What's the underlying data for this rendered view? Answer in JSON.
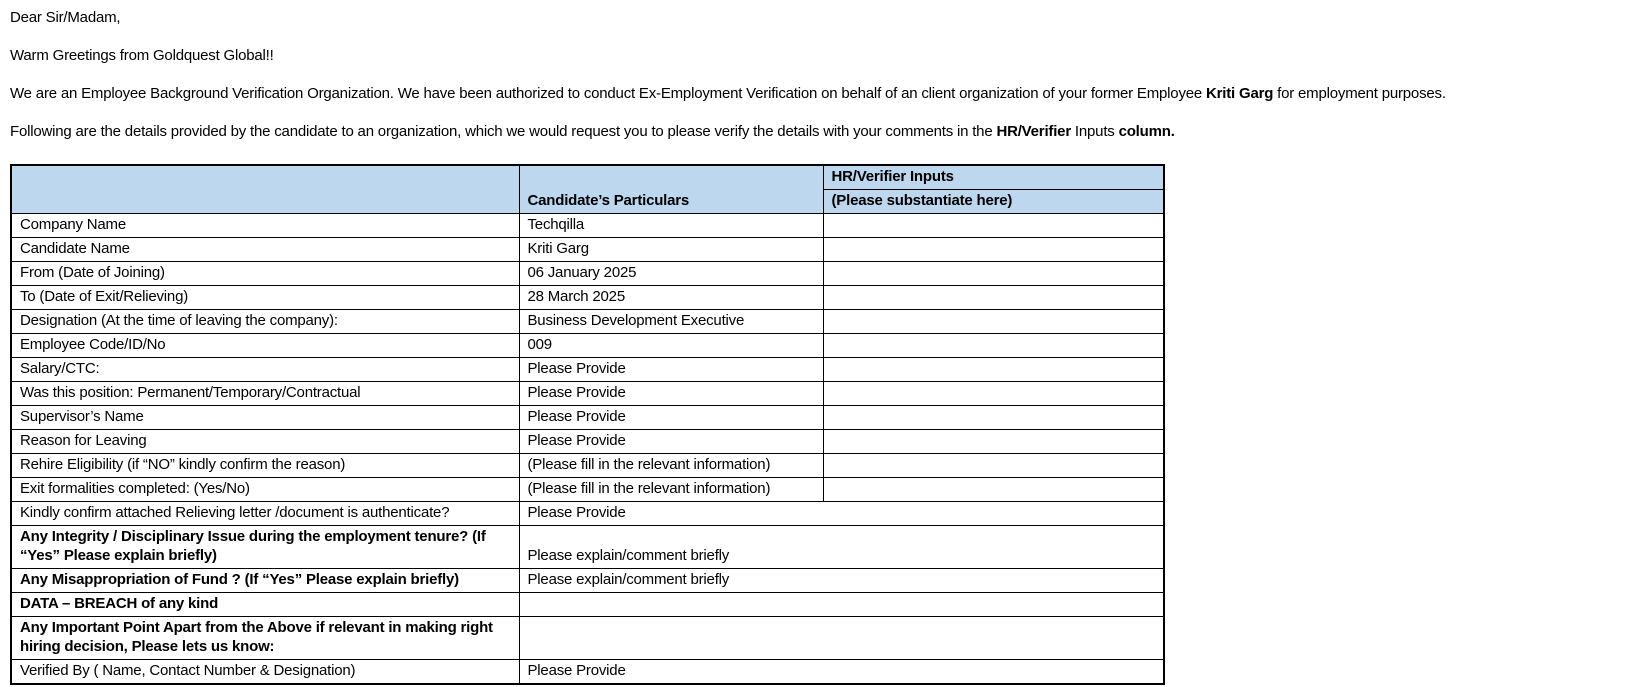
{
  "letter": {
    "salutation": "Dear Sir/Madam,",
    "greeting": "Warm Greetings from Goldquest Global!!",
    "para1": {
      "before": "We are an Employee Background Verification Organization. We have been authorized to conduct Ex-Employment Verification on behalf of an client organization of your former Employee ",
      "candidate_name": "Kriti Garg",
      "after": " for employment purposes."
    },
    "para2": {
      "before": "Following are the details provided by the candidate to an organization, which we would request you to please verify the details with your comments in the ",
      "bold1": "HR/Verifier",
      "middle": " Inputs ",
      "bold2": "column."
    }
  },
  "table": {
    "header": {
      "candidate_particulars": "Candidate’s Particulars",
      "hr_verifier_line1": "HR/Verifier Inputs",
      "hr_verifier_line2": "(Please substantiate here)"
    },
    "rows": [
      {
        "label": "Company Name",
        "value": "Techqilla",
        "bold": false,
        "merged": false
      },
      {
        "label": "Candidate Name",
        "value": "Kriti Garg",
        "bold": false,
        "merged": false
      },
      {
        "label": "From (Date of Joining)",
        "value": "06 January 2025",
        "bold": false,
        "merged": false
      },
      {
        "label": "To (Date of Exit/Relieving)",
        "value": "28 March 2025",
        "bold": false,
        "merged": false
      },
      {
        "label": "Designation (At the time of leaving the company):",
        "value": "Business Development Executive",
        "bold": false,
        "merged": false
      },
      {
        "label": "Employee Code/ID/No",
        "value": "009",
        "bold": false,
        "merged": false
      },
      {
        "label": "Salary/CTC:",
        "value": "Please Provide",
        "bold": false,
        "merged": false
      },
      {
        "label": "Was this position: Permanent/Temporary/Contractual",
        "value": "Please Provide",
        "bold": false,
        "merged": false
      },
      {
        "label": "Supervisor’s Name",
        "value": "Please Provide",
        "bold": false,
        "merged": false
      },
      {
        "label": "Reason for Leaving",
        "value": "Please Provide",
        "bold": false,
        "merged": false
      },
      {
        "label": "Rehire Eligibility (if “NO” kindly confirm the reason)",
        "value": "(Please fill in the relevant information)",
        "bold": false,
        "merged": false
      },
      {
        "label": "Exit formalities completed: (Yes/No)",
        "value": "(Please fill in the relevant information)",
        "bold": false,
        "merged": false
      },
      {
        "label": "Kindly confirm attached Relieving letter /document is authenticate?",
        "value": "Please Provide",
        "bold": false,
        "merged": true
      },
      {
        "label": "Any Integrity / Disciplinary Issue during the employment tenure? (If “Yes” Please explain briefly)",
        "value": "Please explain/comment briefly",
        "bold": true,
        "merged": true
      },
      {
        "label": "Any Misappropriation of Fund ? (If “Yes” Please explain briefly)",
        "value": "Please explain/comment briefly",
        "bold": true,
        "merged": true
      },
      {
        "label": "DATA – BREACH of any kind",
        "value": "",
        "bold": true,
        "merged": true
      },
      {
        "label": "Any Important Point Apart from the Above if relevant in making right hiring decision, Please lets us know:",
        "value": "",
        "bold": true,
        "merged": true
      },
      {
        "label": "Verified By ( Name, Contact Number & Designation)",
        "value": "Please Provide",
        "bold": false,
        "merged": true
      }
    ]
  },
  "colors": {
    "header_bg": "#BDD7EE",
    "border": "#000000",
    "text": "#000000"
  }
}
